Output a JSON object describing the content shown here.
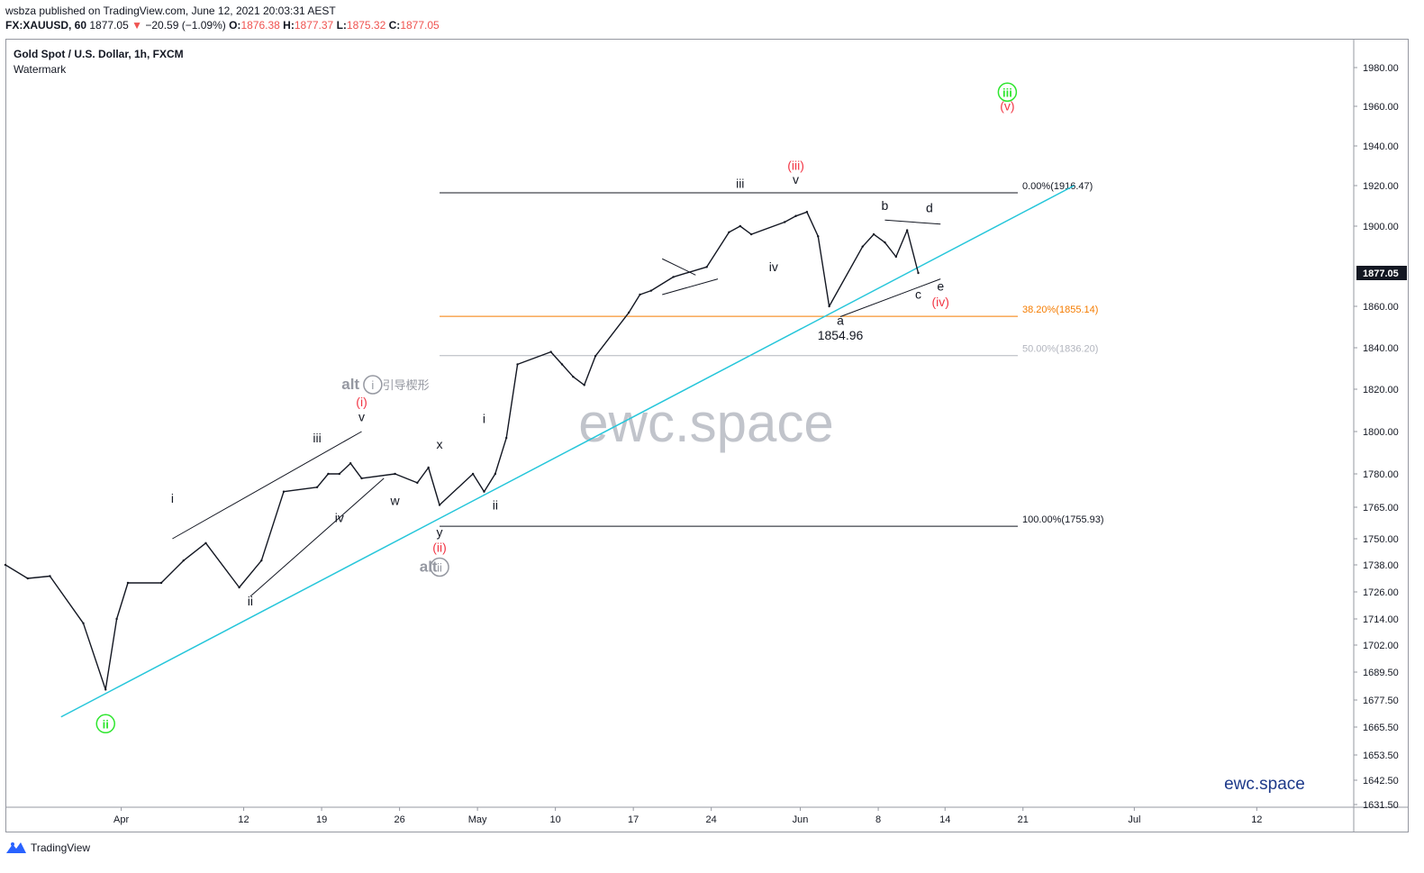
{
  "header": {
    "publisher_line": "wsbza published on TradingView.com, June 12, 2021 20:03:31 AEST",
    "symbol": "FX:XAUUSD, 60",
    "last": "1877.05",
    "change_arrow": "▼",
    "change": "−20.59 (−1.09%)",
    "o_label": "O:",
    "o_value": "1876.38",
    "h_label": "H:",
    "h_value": "1877.37",
    "l_label": "L:",
    "l_value": "1875.32",
    "c_label": "C:",
    "c_value": "1877.05"
  },
  "chart_title": "Gold Spot / U.S. Dollar, 1h, FXCM",
  "chart_subtitle": "Watermark",
  "footer": {
    "brand": "TradingView"
  },
  "colors": {
    "candle": "#131722",
    "trendline": "#26c6da",
    "fib_38": "#f57c00",
    "fib_50": "#b2b5be",
    "wave_red": "#f23645",
    "wave_green": "#2ee62e",
    "alt_gray": "#9598a1",
    "watermark_brand": "#1e3a8a",
    "price_tag_bg": "#131722"
  },
  "chart_data": {
    "type": "line",
    "title": "Gold Spot / U.S. Dollar, 1h, FXCM",
    "x_tick_labels": [
      "Apr",
      "12",
      "19",
      "26",
      "May",
      "10",
      "17",
      "24",
      "Jun",
      "8",
      "14",
      "21",
      "Jul",
      "12"
    ],
    "y_tick_labels": [
      "1980.00",
      "1960.00",
      "1940.00",
      "1920.00",
      "1900.00",
      "1877.05",
      "1860.00",
      "1840.00",
      "1820.00",
      "1800.00",
      "1780.00",
      "1765.00",
      "1750.00",
      "1738.00",
      "1726.00",
      "1714.00",
      "1702.00",
      "1689.50",
      "1677.50",
      "1665.50",
      "1653.50",
      "1642.50",
      "1631.50"
    ],
    "ylim": [
      1631.5,
      1990
    ],
    "current_price": 1877.05,
    "series": [
      {
        "x": [
          "2021-03-22",
          "2021-03-24",
          "2021-03-26",
          "2021-03-29",
          "2021-03-31",
          "2021-04-01",
          "2021-04-02",
          "2021-04-05",
          "2021-04-07",
          "2021-04-09",
          "2021-04-12",
          "2021-04-14",
          "2021-04-16",
          "2021-04-19",
          "2021-04-20",
          "2021-04-21",
          "2021-04-22",
          "2021-04-23",
          "2021-04-26",
          "2021-04-28",
          "2021-04-29",
          "2021-04-30",
          "2021-05-03",
          "2021-05-04",
          "2021-05-05",
          "2021-05-06",
          "2021-05-07",
          "2021-05-10",
          "2021-05-11",
          "2021-05-12",
          "2021-05-13",
          "2021-05-14",
          "2021-05-17",
          "2021-05-18",
          "2021-05-19",
          "2021-05-21",
          "2021-05-24",
          "2021-05-26",
          "2021-05-27",
          "2021-05-28",
          "2021-05-31",
          "2021-06-01",
          "2021-06-02",
          "2021-06-03",
          "2021-06-04",
          "2021-06-07",
          "2021-06-08",
          "2021-06-09",
          "2021-06-10",
          "2021-06-11",
          "2021-06-12"
        ],
        "values": [
          1738,
          1732,
          1733,
          1712,
          1682,
          1714,
          1730,
          1730,
          1740,
          1748,
          1728,
          1740,
          1772,
          1774,
          1780,
          1780,
          1785,
          1778,
          1780,
          1776,
          1783,
          1766,
          1780,
          1772,
          1780,
          1797,
          1832,
          1838,
          1832,
          1826,
          1822,
          1836,
          1857,
          1866,
          1868,
          1875,
          1880,
          1897,
          1900,
          1896,
          1902,
          1905,
          1907,
          1895,
          1860,
          1890,
          1896,
          1892,
          1885,
          1898,
          1877.05
        ]
      }
    ],
    "trendline": {
      "from": [
        "2021-03-27",
        1670
      ],
      "to": [
        "2021-06-26",
        1920
      ]
    },
    "fib_levels": [
      {
        "label": "0.00%(1916.47)",
        "value": 1916.47,
        "start": "2021-04-30",
        "end": "2021-06-20"
      },
      {
        "label": "38.20%(1855.14)",
        "value": 1855.14,
        "start": "2021-04-30",
        "end": "2021-06-20"
      },
      {
        "label": "50.00%(1836.20)",
        "value": 1836.2,
        "start": "2021-04-30",
        "end": "2021-06-20"
      },
      {
        "label": "100.00%(1755.93)",
        "value": 1755.93,
        "start": "2021-04-30",
        "end": "2021-06-20"
      }
    ],
    "wave_labels": [
      {
        "text": "ii",
        "x": "2021-03-31",
        "y": 1665,
        "style": "green-circle"
      },
      {
        "text": "i",
        "x": "2021-04-06",
        "y": 1767,
        "style": "black"
      },
      {
        "text": "ii",
        "x": "2021-04-13",
        "y": 1720,
        "style": "black"
      },
      {
        "text": "iii",
        "x": "2021-04-19",
        "y": 1795,
        "style": "black"
      },
      {
        "text": "iv",
        "x": "2021-04-21",
        "y": 1758,
        "style": "black"
      },
      {
        "text": "v",
        "x": "2021-04-23",
        "y": 1805,
        "style": "black"
      },
      {
        "text": "(i)",
        "x": "2021-04-23",
        "y": 1812,
        "style": "red"
      },
      {
        "text": "alt",
        "x": "2021-04-22",
        "y": 1820,
        "style": "alt-gray"
      },
      {
        "text": "i",
        "x": "2021-04-24",
        "y": 1820,
        "style": "alt-circle"
      },
      {
        "text": "引导楔形",
        "x": "2021-04-26",
        "y": 1820,
        "style": "alt-gray-small"
      },
      {
        "text": "w",
        "x": "2021-04-26",
        "y": 1766,
        "style": "black"
      },
      {
        "text": "x",
        "x": "2021-04-30",
        "y": 1792,
        "style": "black"
      },
      {
        "text": "y",
        "x": "2021-04-30",
        "y": 1751,
        "style": "black"
      },
      {
        "text": "(ii)",
        "x": "2021-04-30",
        "y": 1744,
        "style": "red"
      },
      {
        "text": "alt",
        "x": "2021-04-29",
        "y": 1735,
        "style": "alt-gray"
      },
      {
        "text": "ii",
        "x": "2021-04-30",
        "y": 1735,
        "style": "alt-circle"
      },
      {
        "text": "i",
        "x": "2021-05-04",
        "y": 1804,
        "style": "black"
      },
      {
        "text": "ii",
        "x": "2021-05-05",
        "y": 1764,
        "style": "black"
      },
      {
        "text": "iii",
        "x": "2021-05-27",
        "y": 1919,
        "style": "black"
      },
      {
        "text": "iv",
        "x": "2021-05-30",
        "y": 1878,
        "style": "black"
      },
      {
        "text": "v",
        "x": "2021-06-01",
        "y": 1921,
        "style": "black"
      },
      {
        "text": "(iii)",
        "x": "2021-06-01",
        "y": 1928,
        "style": "red"
      },
      {
        "text": "a",
        "x": "2021-06-05",
        "y": 1851,
        "style": "black"
      },
      {
        "text": "1854.96",
        "x": "2021-06-05",
        "y": 1844,
        "style": "black"
      },
      {
        "text": "b",
        "x": "2021-06-09",
        "y": 1908,
        "style": "black"
      },
      {
        "text": "c",
        "x": "2021-06-12",
        "y": 1864,
        "style": "black"
      },
      {
        "text": "d",
        "x": "2021-06-13",
        "y": 1907,
        "style": "black"
      },
      {
        "text": "e",
        "x": "2021-06-14",
        "y": 1868,
        "style": "black"
      },
      {
        "text": "(iv)",
        "x": "2021-06-14",
        "y": 1860,
        "style": "red"
      },
      {
        "text": "iii",
        "x": "2021-06-20",
        "y": 1965,
        "style": "green-circle"
      },
      {
        "text": "(v)",
        "x": "2021-06-20",
        "y": 1958,
        "style": "red"
      }
    ],
    "watermark": "ewc.space",
    "brand_corner": "ewc.space",
    "grid": false,
    "legend": "none"
  }
}
